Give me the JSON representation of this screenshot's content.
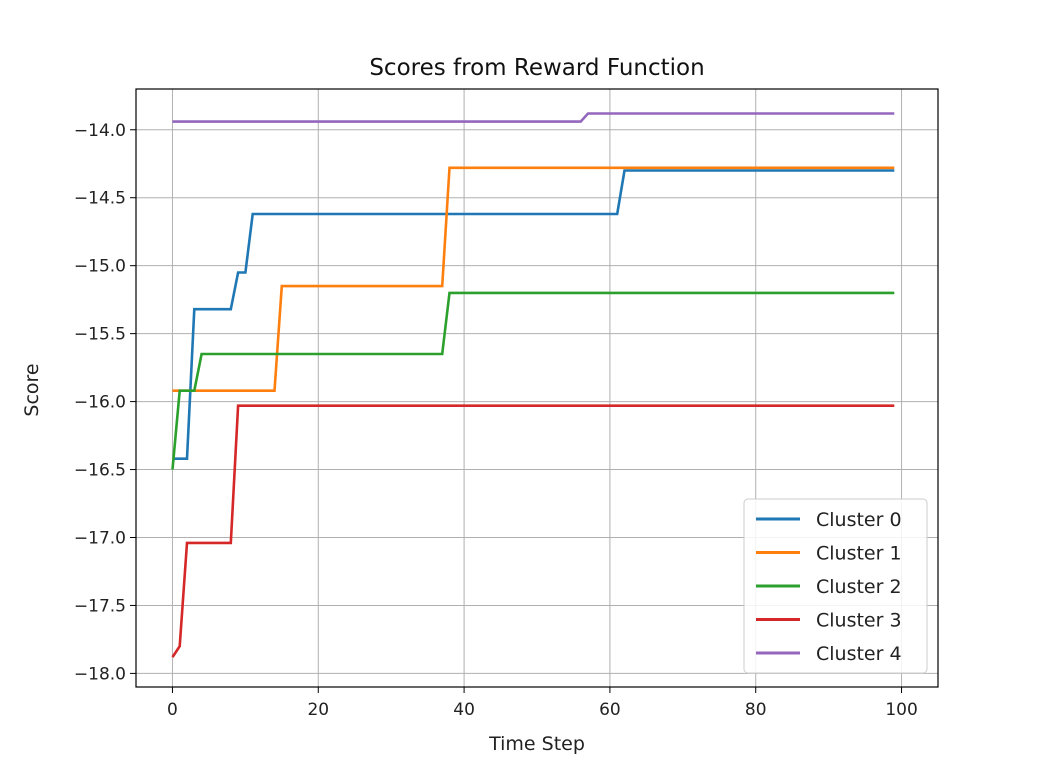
{
  "chart_data": {
    "type": "line",
    "title": "Scores from Reward Function",
    "xlabel": "Time Step",
    "ylabel": "Score",
    "xlim": [
      -5,
      105
    ],
    "ylim": [
      -18.1,
      -13.7
    ],
    "xticks": [
      0,
      20,
      40,
      60,
      80,
      100
    ],
    "xtick_labels": [
      "0",
      "20",
      "40",
      "60",
      "80",
      "100"
    ],
    "yticks": [
      -14.0,
      -14.5,
      -15.0,
      -15.5,
      -16.0,
      -16.5,
      -17.0,
      -17.5,
      -18.0
    ],
    "ytick_labels": [
      "−14.0",
      "−14.5",
      "−15.0",
      "−15.5",
      "−16.0",
      "−16.5",
      "−17.0",
      "−17.5",
      "−18.0"
    ],
    "grid": true,
    "legend_position": "lower-right",
    "series": [
      {
        "name": "Cluster 0",
        "color": "#1f77b4",
        "x": [
          0,
          1,
          2,
          3,
          4,
          8,
          9,
          10,
          11,
          12,
          61,
          62,
          99
        ],
        "y": [
          -16.42,
          -16.42,
          -16.42,
          -15.32,
          -15.32,
          -15.32,
          -15.05,
          -15.05,
          -14.62,
          -14.62,
          -14.62,
          -14.3,
          -14.3
        ]
      },
      {
        "name": "Cluster 1",
        "color": "#ff7f0e",
        "x": [
          0,
          1,
          13,
          14,
          15,
          36,
          37,
          38,
          99
        ],
        "y": [
          -15.92,
          -15.92,
          -15.92,
          -15.92,
          -15.15,
          -15.15,
          -15.15,
          -14.28,
          -14.28
        ]
      },
      {
        "name": "Cluster 2",
        "color": "#2ca02c",
        "x": [
          0,
          1,
          2,
          3,
          4,
          36,
          37,
          38,
          99
        ],
        "y": [
          -16.5,
          -15.92,
          -15.92,
          -15.92,
          -15.65,
          -15.65,
          -15.65,
          -15.2,
          -15.2
        ]
      },
      {
        "name": "Cluster 3",
        "color": "#d62728",
        "x": [
          0,
          1,
          2,
          8,
          9,
          99
        ],
        "y": [
          -17.88,
          -17.8,
          -17.04,
          -17.04,
          -16.03,
          -16.03
        ]
      },
      {
        "name": "Cluster 4",
        "color": "#9467bd",
        "x": [
          0,
          56,
          57,
          99
        ],
        "y": [
          -13.94,
          -13.94,
          -13.88,
          -13.88
        ]
      }
    ]
  }
}
